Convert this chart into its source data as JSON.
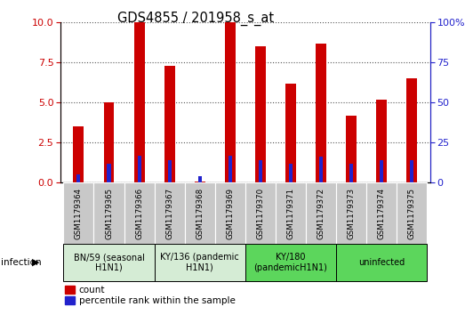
{
  "title": "GDS4855 / 201958_s_at",
  "samples": [
    "GSM1179364",
    "GSM1179365",
    "GSM1179366",
    "GSM1179367",
    "GSM1179368",
    "GSM1179369",
    "GSM1179370",
    "GSM1179371",
    "GSM1179372",
    "GSM1179373",
    "GSM1179374",
    "GSM1179375"
  ],
  "count_values": [
    3.5,
    5.0,
    10.0,
    7.3,
    0.05,
    10.0,
    8.5,
    6.2,
    8.7,
    4.2,
    5.2,
    6.5
  ],
  "percentile_values": [
    5,
    12,
    17,
    14,
    4,
    17,
    14,
    12,
    16,
    12,
    14,
    14
  ],
  "ylim_left": [
    0,
    10
  ],
  "ylim_right": [
    0,
    100
  ],
  "yticks_left": [
    0,
    2.5,
    5.0,
    7.5,
    10
  ],
  "yticks_right": [
    0,
    25,
    50,
    75,
    100
  ],
  "bar_color_red": "#cc0000",
  "bar_color_blue": "#2222cc",
  "groups": [
    {
      "label": "BN/59 (seasonal\nH1N1)",
      "start": 0,
      "end": 3,
      "color": "#d5ecd5"
    },
    {
      "label": "KY/136 (pandemic\nH1N1)",
      "start": 3,
      "end": 6,
      "color": "#d5ecd5"
    },
    {
      "label": "KY/180\n(pandemicH1N1)",
      "start": 6,
      "end": 9,
      "color": "#5cd65c"
    },
    {
      "label": "uninfected",
      "start": 9,
      "end": 12,
      "color": "#5cd65c"
    }
  ],
  "infection_label": "infection",
  "legend_count": "count",
  "legend_percentile": "percentile rank within the sample",
  "grid_color": "#555555",
  "left_axis_color": "#cc0000",
  "right_axis_color": "#2222cc",
  "tick_bg_color": "#c8c8c8"
}
